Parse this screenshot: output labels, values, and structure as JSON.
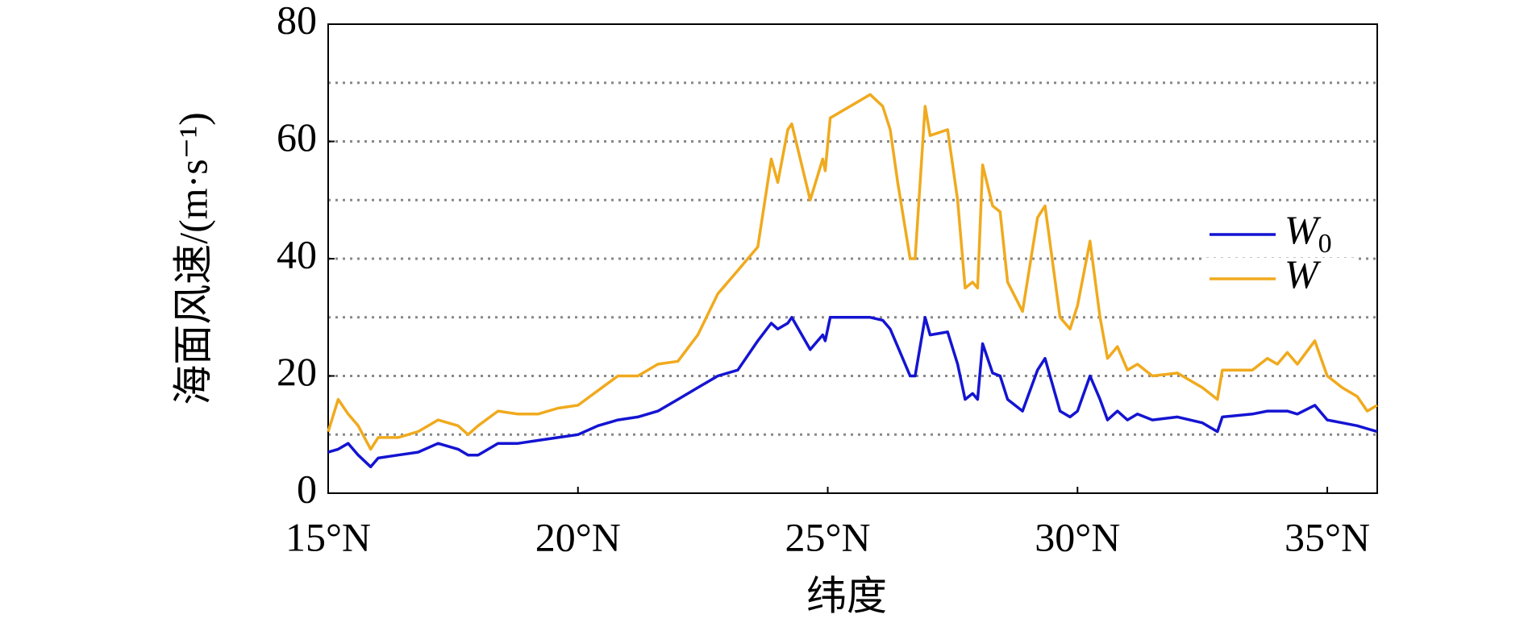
{
  "chart_data": {
    "type": "line",
    "x_label": "纬度",
    "y_label": "海面风速/(m·s⁻¹)",
    "x": [
      15.0,
      15.2,
      15.4,
      15.6,
      15.85,
      16.0,
      16.4,
      16.8,
      17.2,
      17.6,
      17.8,
      18.0,
      18.4,
      18.8,
      19.2,
      19.6,
      20.0,
      20.4,
      20.8,
      21.2,
      21.6,
      22.0,
      22.4,
      22.8,
      23.2,
      23.6,
      23.87,
      24.0,
      24.2,
      24.28,
      24.65,
      24.9,
      24.95,
      25.05,
      25.85,
      26.1,
      26.25,
      26.4,
      26.65,
      26.75,
      26.95,
      27.05,
      27.4,
      27.6,
      27.75,
      27.9,
      28.0,
      28.1,
      28.3,
      28.45,
      28.6,
      28.9,
      29.2,
      29.35,
      29.65,
      29.85,
      30.0,
      30.25,
      30.45,
      30.6,
      30.8,
      31.0,
      31.2,
      31.5,
      32.0,
      32.5,
      32.8,
      32.9,
      33.5,
      33.8,
      34.0,
      34.2,
      34.4,
      34.75,
      35.0,
      35.3,
      35.6,
      35.8,
      36.0
    ],
    "series": [
      {
        "name": "W0",
        "color": "#1414d2",
        "values": [
          7,
          7.5,
          8.5,
          6.5,
          4.5,
          6,
          6.5,
          7,
          8.5,
          7.5,
          6.5,
          6.5,
          8.5,
          8.5,
          9,
          9.5,
          10,
          11.5,
          12.5,
          13,
          14,
          16,
          18,
          20,
          21,
          26,
          29,
          28,
          29,
          30,
          24.5,
          27,
          26,
          30,
          30,
          29.5,
          28,
          25,
          20,
          20,
          30,
          27,
          27.5,
          22,
          16,
          17,
          16,
          25.5,
          20.5,
          20,
          16,
          14,
          21,
          23,
          14,
          13,
          14,
          20,
          16,
          12.5,
          14,
          12.5,
          13.5,
          12.5,
          13,
          12,
          10.5,
          13,
          13.5,
          14,
          14,
          14,
          13.5,
          15,
          12.5,
          12,
          11.5,
          11,
          10.5
        ]
      },
      {
        "name": "W",
        "color": "#f0aa1e",
        "values": [
          10.5,
          16,
          13.5,
          11.5,
          7.5,
          9.5,
          9.5,
          10.5,
          12.5,
          11.5,
          10,
          11.5,
          14,
          13.5,
          13.5,
          14.5,
          15,
          17.5,
          20,
          20,
          22,
          22.5,
          27,
          34,
          38,
          42,
          57,
          53,
          62,
          63,
          50,
          57,
          55,
          64,
          68,
          66,
          62,
          53,
          40,
          40,
          66,
          61,
          62,
          50,
          35,
          36,
          35,
          56,
          49,
          48,
          36,
          31,
          47,
          49,
          30,
          28,
          32,
          43,
          30,
          23,
          25,
          21,
          22,
          20,
          20.5,
          18,
          16,
          21,
          21,
          23,
          22,
          24,
          22,
          26,
          20,
          18,
          16.5,
          14,
          15
        ]
      }
    ],
    "xlim": [
      15,
      36
    ],
    "xticks": [
      {
        "value": 15,
        "label": "15°N"
      },
      {
        "value": 20,
        "label": "20°N"
      },
      {
        "value": 25,
        "label": "25°N"
      },
      {
        "value": 30,
        "label": "30°N"
      },
      {
        "value": 35,
        "label": "35°N"
      }
    ],
    "ylim": [
      0,
      80
    ],
    "yticks": [
      0,
      20,
      40,
      60,
      80
    ],
    "grid_lines": [
      10,
      20,
      30,
      40,
      50,
      60,
      70
    ],
    "legend": "right"
  }
}
